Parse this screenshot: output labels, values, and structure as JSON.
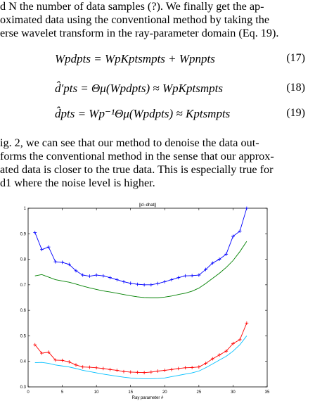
{
  "paragraph_top": [
    "d N the number of data samples (?). We finally get the ap-",
    "oximated data using the conventional method by taking the",
    "erse wavelet transform in the ray-parameter domain (Eq. 19)."
  ],
  "equations": [
    {
      "text": "Wpdpts = WpKptsmpts + Wpnpts",
      "number": "(17)"
    },
    {
      "text": "d̂′pts = Θμ(Wpdpts) ≈ WpKptsmpts",
      "number": "(18)"
    },
    {
      "text": "d̂pts = Wp⁻¹Θμ(Wpdpts) ≈ Kptsmpts",
      "number": "(19)"
    }
  ],
  "paragraph_bottom": [
    "ig. 2, we can see that our method to denoise the data out-",
    "forms the conventional method in the sense that our approx-",
    "ated data is closer to the true data. This is especially true for",
    "d1 where the noise level is higher."
  ],
  "chart_data": {
    "type": "line",
    "title": "||d−dhat||",
    "xlabel": "Ray parameter #",
    "ylabel": "",
    "xlim": [
      0,
      35
    ],
    "ylim": [
      0.3,
      1.0
    ],
    "xticks": [
      "0",
      "5",
      "10",
      "15",
      "20",
      "25",
      "30",
      "35"
    ],
    "yticks": [
      "0.3",
      "0.4",
      "0.5",
      "0.6",
      "0.7",
      "0.8",
      "0.9",
      "1"
    ],
    "x": [
      1,
      2,
      3,
      4,
      5,
      6,
      7,
      8,
      9,
      10,
      11,
      12,
      13,
      14,
      15,
      16,
      17,
      18,
      19,
      20,
      21,
      22,
      23,
      24,
      25,
      26,
      27,
      28,
      29,
      30,
      31,
      32
    ],
    "series": [
      {
        "color": "#0000ff",
        "marker": "+",
        "values": [
          0.905,
          0.838,
          0.848,
          0.79,
          0.788,
          0.78,
          0.755,
          0.738,
          0.734,
          0.738,
          0.735,
          0.728,
          0.72,
          0.712,
          0.706,
          0.702,
          0.7,
          0.7,
          0.705,
          0.712,
          0.72,
          0.728,
          0.735,
          0.736,
          0.738,
          0.76,
          0.785,
          0.8,
          0.82,
          0.89,
          0.91,
          1.0
        ]
      },
      {
        "color": "#008000",
        "marker": "",
        "values": [
          0.735,
          0.74,
          0.73,
          0.72,
          0.715,
          0.71,
          0.703,
          0.695,
          0.688,
          0.682,
          0.676,
          0.672,
          0.667,
          0.662,
          0.657,
          0.653,
          0.65,
          0.649,
          0.649,
          0.652,
          0.656,
          0.662,
          0.667,
          0.675,
          0.687,
          0.705,
          0.725,
          0.745,
          0.768,
          0.795,
          0.83,
          0.87
        ]
      },
      {
        "color": "#ff0000",
        "marker": "+",
        "values": [
          0.465,
          0.432,
          0.436,
          0.405,
          0.404,
          0.398,
          0.386,
          0.378,
          0.377,
          0.375,
          0.372,
          0.368,
          0.365,
          0.36,
          0.358,
          0.357,
          0.356,
          0.358,
          0.362,
          0.365,
          0.368,
          0.372,
          0.375,
          0.376,
          0.378,
          0.392,
          0.41,
          0.425,
          0.44,
          0.47,
          0.485,
          0.55
        ]
      },
      {
        "color": "#00bfff",
        "marker": "",
        "values": [
          0.395,
          0.396,
          0.392,
          0.386,
          0.382,
          0.378,
          0.372,
          0.365,
          0.36,
          0.355,
          0.35,
          0.346,
          0.342,
          0.338,
          0.335,
          0.333,
          0.332,
          0.332,
          0.333,
          0.335,
          0.34,
          0.345,
          0.35,
          0.355,
          0.362,
          0.375,
          0.39,
          0.405,
          0.42,
          0.44,
          0.465,
          0.5
        ]
      }
    ]
  }
}
